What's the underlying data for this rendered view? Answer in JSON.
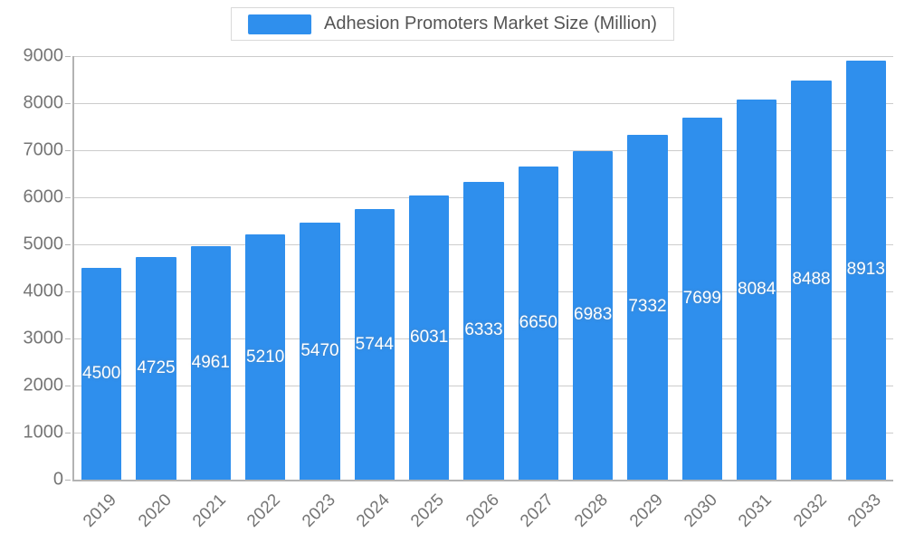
{
  "chart_data": {
    "type": "bar",
    "title": "Adhesion Promoters Market Size (Million)",
    "categories": [
      "2019",
      "2020",
      "2021",
      "2022",
      "2023",
      "2024",
      "2025",
      "2026",
      "2027",
      "2028",
      "2029",
      "2030",
      "2031",
      "2032",
      "2033"
    ],
    "values": [
      4500,
      4725,
      4961,
      5210,
      5470,
      5744,
      6031,
      6333,
      6650,
      6983,
      7332,
      7699,
      8084,
      8488,
      8913
    ],
    "xlabel": "",
    "ylabel": "",
    "ylim": [
      0,
      9000
    ],
    "ytick_step": 1000,
    "grid": true,
    "legend_position": "top",
    "bar_color": "#2F8FED",
    "value_label_color": "#ffffff",
    "axis_text_color": "#757575",
    "grid_color": "#cccccc"
  }
}
